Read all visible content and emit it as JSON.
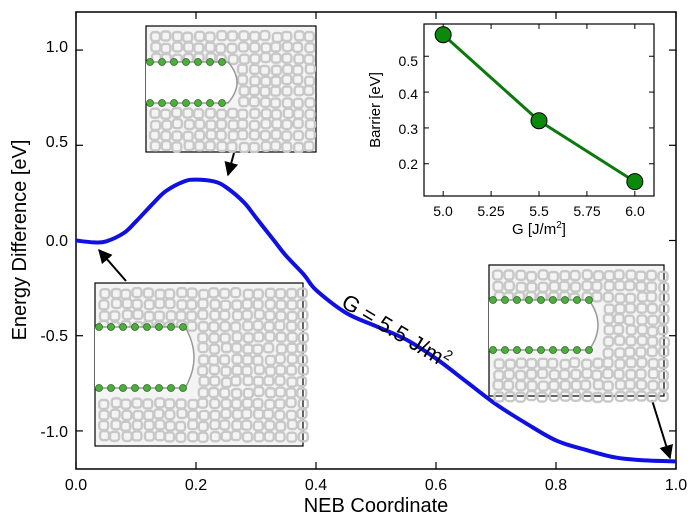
{
  "chart_data": [
    {
      "type": "line",
      "xlabel": "NEB Coordinate",
      "ylabel": "Energy Difference [eV]",
      "xlim": [
        0.0,
        1.0
      ],
      "ylim": [
        -1.2,
        1.2
      ],
      "xticks": [
        "0.0",
        "0.2",
        "0.4",
        "0.6",
        "0.8",
        "1.0"
      ],
      "yticks": [
        "1.0",
        "0.5",
        "0.0",
        "-0.5",
        "-1.0"
      ],
      "series": [
        {
          "color": "#1010e0",
          "x": [
            0.0,
            0.03,
            0.05,
            0.08,
            0.1,
            0.13,
            0.15,
            0.18,
            0.2,
            0.23,
            0.25,
            0.28,
            0.3,
            0.33,
            0.35,
            0.38,
            0.4,
            0.45,
            0.5,
            0.55,
            0.6,
            0.65,
            0.7,
            0.75,
            0.8,
            0.85,
            0.9,
            0.95,
            1.0
          ],
          "y": [
            0.0,
            -0.01,
            -0.005,
            0.04,
            0.1,
            0.2,
            0.26,
            0.31,
            0.32,
            0.31,
            0.28,
            0.2,
            0.12,
            0.0,
            -0.08,
            -0.18,
            -0.26,
            -0.38,
            -0.45,
            -0.52,
            -0.62,
            -0.74,
            -0.86,
            -0.96,
            -1.05,
            -1.1,
            -1.14,
            -1.155,
            -1.16
          ]
        }
      ],
      "annotations": [
        {
          "text": "G = 5.5 J/m",
          "superscript": "2"
        }
      ]
    },
    {
      "type": "line",
      "xlabel": "G [J/m",
      "xlabel_superscript": "2",
      "xlabel_suffix": "]",
      "ylabel": "Barrier [eV]",
      "xlim": [
        4.9,
        6.1
      ],
      "ylim": [
        0.11,
        0.59
      ],
      "xticks": [
        "5.0",
        "5.25",
        "5.5",
        "5.75",
        "6.0"
      ],
      "yticks": [
        "0.5",
        "0.4",
        "0.3",
        "0.2"
      ],
      "series": [
        {
          "color": "#0a7a0a",
          "marker_color": "#0a8a0a",
          "x": [
            5.0,
            5.5,
            6.0
          ],
          "y": [
            0.56,
            0.32,
            0.15
          ]
        }
      ]
    }
  ],
  "colors": {
    "main_curve": "#1010e0",
    "inset_line": "#0a7a0a",
    "inset_marker": "#0a8a0a",
    "atom_green": "#4caf3c",
    "atom_gray": "#c8c8c8"
  }
}
